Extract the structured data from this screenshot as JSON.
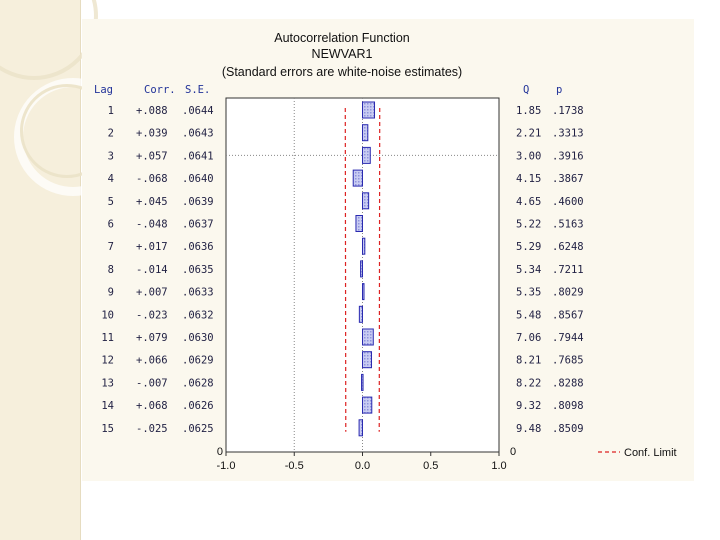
{
  "slide": {
    "accent_color": "#f6efdc"
  },
  "chart_data": {
    "type": "bar",
    "title": "Autocorrelation Function",
    "subtitle": "NEWVAR1",
    "note": "(Standard errors are white-noise estimates)",
    "table_headers": {
      "lag": "Lag",
      "corr": "Corr.",
      "se": "S.E.",
      "q": "Q",
      "p": "p"
    },
    "lag": [
      "1",
      "2",
      "3",
      "4",
      "5",
      "6",
      "7",
      "8",
      "9",
      "10",
      "11",
      "12",
      "13",
      "14",
      "15"
    ],
    "corr_text": [
      "+.088",
      "+.039",
      "+.057",
      "-.068",
      "+.045",
      "-.048",
      "+.017",
      "-.014",
      "+.007",
      "-.023",
      "+.079",
      "+.066",
      "-.007",
      "+.068",
      "-.025"
    ],
    "se_text": [
      ".0644",
      ".0643",
      ".0641",
      ".0640",
      ".0639",
      ".0637",
      ".0636",
      ".0635",
      ".0633",
      ".0632",
      ".0630",
      ".0629",
      ".0628",
      ".0626",
      ".0625"
    ],
    "q_text": [
      "1.85",
      "2.21",
      "3.00",
      "4.15",
      "4.65",
      "5.22",
      "5.29",
      "5.34",
      "5.35",
      "5.48",
      "7.06",
      "8.21",
      "8.22",
      "9.32",
      "9.48"
    ],
    "p_text": [
      ".1738",
      ".3313",
      ".3916",
      ".3867",
      ".4600",
      ".5163",
      ".6248",
      ".7211",
      ".8029",
      ".8567",
      ".7944",
      ".7685",
      ".8288",
      ".8098",
      ".8509"
    ],
    "values": [
      0.088,
      0.039,
      0.057,
      -0.068,
      0.045,
      -0.048,
      0.017,
      -0.014,
      0.007,
      -0.023,
      0.079,
      0.066,
      -0.007,
      0.068,
      -0.025
    ],
    "conf_limit": [
      0.1262,
      0.126,
      0.1256,
      0.1254,
      0.1252,
      0.1249,
      0.1247,
      0.1244,
      0.1241,
      0.1239,
      0.1235,
      0.1233,
      0.1231,
      0.1227,
      0.1225
    ],
    "xlim": [
      -1.0,
      1.0
    ],
    "xticks": [
      "-1.0",
      "-0.5",
      "0.0",
      "0.5",
      "1.0"
    ],
    "left_zero": "0",
    "right_zero": "0",
    "legend": "Conf. Limit",
    "grid": "dotted lines at 0.0 and -0.5, horizontal at lag 3",
    "colors": {
      "bar_fill": "#b4b8e8",
      "bar_stroke": "#2a2ab0",
      "conf_limit": "#dd2222",
      "grid": "#888888"
    }
  }
}
